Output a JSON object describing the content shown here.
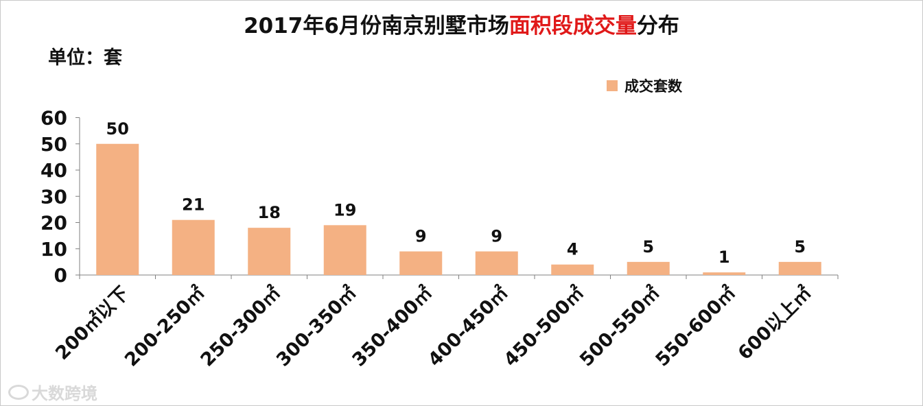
{
  "title": {
    "prefix": "2017年6月份南京别墅市场",
    "highlight": "面积段成交量",
    "suffix": "分布"
  },
  "unit_label": "单位：套",
  "watermark": "大数跨境",
  "colors": {
    "bar": "#f4b183",
    "highlight": "#e01919",
    "axis": "#7f7f7f",
    "text": "#111111"
  },
  "chart_data": {
    "type": "bar",
    "categories": [
      "200㎡以下",
      "200-250㎡",
      "250-300㎡",
      "300-350㎡",
      "350-400㎡",
      "400-450㎡",
      "450-500㎡",
      "500-550㎡",
      "550-600㎡",
      "600以上㎡"
    ],
    "series": [
      {
        "name": "成交套数",
        "values": [
          50,
          21,
          18,
          19,
          9,
          9,
          4,
          5,
          1,
          5
        ]
      }
    ],
    "yticks": [
      0,
      10,
      20,
      30,
      40,
      50,
      60
    ],
    "ylim": [
      0,
      60
    ],
    "grid": false,
    "legend": "top-right",
    "data_labels": true
  }
}
